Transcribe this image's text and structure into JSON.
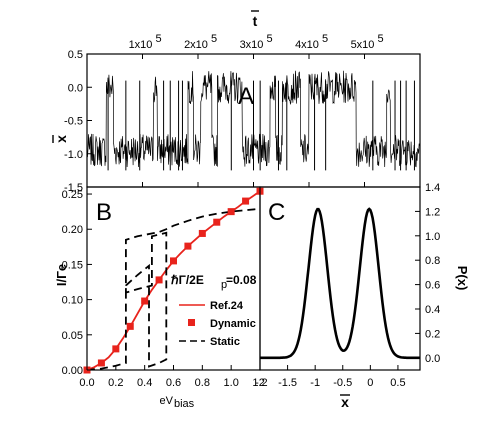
{
  "chart_data": [
    {
      "id": "A",
      "type": "line",
      "panel_label": "A",
      "xlabel": "t",
      "ylabel": "x",
      "xlim": [
        0,
        600000
      ],
      "ylim": [
        -1.5,
        0.5
      ],
      "x_ticks": [
        100000,
        200000,
        300000,
        400000,
        500000
      ],
      "x_tick_labels": [
        "1x10",
        "2x10",
        "3x10",
        "4x10",
        "5x10"
      ],
      "x_tick_exponent": "5",
      "y_ticks": [
        0.5,
        0.0,
        -0.5,
        -1.0,
        -1.5
      ],
      "y_tick_labels": [
        "0.5",
        "0.0",
        "-0.5",
        "-1.0",
        "-1.5"
      ],
      "state_levels": [
        -0.95,
        0.0
      ],
      "noise_amplitude": 0.25,
      "segments": [
        {
          "x0": 0,
          "x1": 35000,
          "state": -0.95
        },
        {
          "x0": 35000,
          "x1": 48000,
          "state": 0.0
        },
        {
          "x0": 48000,
          "x1": 120000,
          "state": -0.95
        },
        {
          "x0": 120000,
          "x1": 127000,
          "state": 0.0
        },
        {
          "x0": 127000,
          "x1": 182000,
          "state": -0.95
        },
        {
          "x0": 182000,
          "x1": 192000,
          "state": 0.0
        },
        {
          "x0": 192000,
          "x1": 205000,
          "state": -0.95
        },
        {
          "x0": 205000,
          "x1": 225000,
          "state": 0.0
        },
        {
          "x0": 225000,
          "x1": 235000,
          "state": -0.95
        },
        {
          "x0": 235000,
          "x1": 280000,
          "state": 0.0
        },
        {
          "x0": 280000,
          "x1": 330000,
          "state": -0.95
        },
        {
          "x0": 330000,
          "x1": 340000,
          "state": 0.0
        },
        {
          "x0": 340000,
          "x1": 352000,
          "state": -0.95
        },
        {
          "x0": 352000,
          "x1": 385000,
          "state": 0.0
        },
        {
          "x0": 385000,
          "x1": 400000,
          "state": -0.95
        },
        {
          "x0": 400000,
          "x1": 485000,
          "state": 0.0
        },
        {
          "x0": 485000,
          "x1": 540000,
          "state": -0.95
        },
        {
          "x0": 540000,
          "x1": 547000,
          "state": 0.0
        },
        {
          "x0": 547000,
          "x1": 600000,
          "state": -0.95
        }
      ],
      "spikes": [
        38000,
        70000,
        95000,
        138000,
        150000,
        165000,
        172000,
        260000,
        300000,
        312000,
        345000,
        360000,
        410000,
        430000,
        515000,
        555000,
        565000,
        575000,
        590000
      ]
    },
    {
      "id": "B",
      "type": "line",
      "panel_label": "B",
      "xlabel": "eV",
      "xlabel_sub": "bias",
      "ylabel": "I/Γe",
      "xlim": [
        0,
        1.2
      ],
      "ylim": [
        0,
        0.26
      ],
      "x_ticks": [
        0.0,
        0.2,
        0.4,
        0.6,
        0.8,
        1.0,
        1.2
      ],
      "x_tick_labels": [
        "0.0",
        "0.2",
        "0.4",
        "0.6",
        "0.8",
        "1.0",
        "1.2"
      ],
      "y_ticks": [
        0.0,
        0.05,
        0.1,
        0.15,
        0.2,
        0.25
      ],
      "y_tick_labels": [
        "0.00",
        "0.05",
        "0.10",
        "0.15",
        "0.20",
        "0.25"
      ],
      "annotation": "ℏΓ/2E",
      "annotation_sub": "p",
      "annotation_value": "=0.08",
      "legend": [
        "Ref.24",
        "Dynamic",
        "Static"
      ],
      "series": [
        {
          "name": "Ref.24",
          "style": "solid-red",
          "x": [
            0.0,
            0.05,
            0.1,
            0.15,
            0.2,
            0.25,
            0.3,
            0.35,
            0.4,
            0.45,
            0.5,
            0.55,
            0.6,
            0.65,
            0.7,
            0.75,
            0.8,
            0.85,
            0.9,
            0.95,
            1.0,
            1.05,
            1.1,
            1.15,
            1.2
          ],
          "y": [
            0.0,
            0.004,
            0.01,
            0.018,
            0.03,
            0.045,
            0.062,
            0.08,
            0.098,
            0.114,
            0.128,
            0.142,
            0.155,
            0.166,
            0.176,
            0.185,
            0.194,
            0.202,
            0.21,
            0.218,
            0.225,
            0.232,
            0.24,
            0.247,
            0.254
          ]
        },
        {
          "name": "Dynamic",
          "style": "red-square",
          "x": [
            0.0,
            0.1,
            0.2,
            0.3,
            0.4,
            0.5,
            0.6,
            0.7,
            0.8,
            0.9,
            1.0,
            1.1,
            1.2
          ],
          "y": [
            0.0,
            0.01,
            0.03,
            0.062,
            0.098,
            0.128,
            0.155,
            0.176,
            0.194,
            0.21,
            0.225,
            0.24,
            0.254
          ]
        },
        {
          "name": "Static",
          "style": "dashed-black",
          "x": [
            0.0,
            0.05,
            0.1,
            0.15,
            0.2,
            0.25,
            0.27,
            0.27,
            0.35,
            0.43,
            0.43,
            0.5,
            0.55,
            0.55,
            0.45,
            0.45,
            0.35,
            0.27,
            0.27,
            0.35,
            0.5,
            0.55,
            0.6,
            0.7,
            0.8,
            0.9,
            1.0,
            1.1,
            1.2
          ],
          "y": [
            0.0,
            0.001,
            0.002,
            0.004,
            0.006,
            0.009,
            0.01,
            0.12,
            0.135,
            0.148,
            0.005,
            0.01,
            0.015,
            0.195,
            0.19,
            0.12,
            0.115,
            0.11,
            0.185,
            0.19,
            0.196,
            0.2,
            0.205,
            0.212,
            0.218,
            0.222,
            0.225,
            0.227,
            0.229
          ]
        }
      ]
    },
    {
      "id": "C",
      "type": "line",
      "panel_label": "C",
      "xlabel": "x",
      "ylabel": "P(x)",
      "xlim": [
        -2.0,
        0.9
      ],
      "ylim": [
        -0.1,
        1.4
      ],
      "x_ticks": [
        -2.0,
        -1.5,
        -1.0,
        -0.5,
        0.0,
        0.5
      ],
      "x_tick_labels": [
        "-2",
        "-1.5",
        "-1",
        "-0.5",
        "0",
        "0.5"
      ],
      "y_ticks": [
        0.0,
        0.2,
        0.4,
        0.6,
        0.8,
        1.0,
        1.2,
        1.4
      ],
      "y_tick_labels": [
        "0.0",
        "0.2",
        "0.4",
        "0.6",
        "0.8",
        "1.0",
        "1.2",
        "1.4"
      ],
      "peaks": [
        {
          "center": -0.95,
          "height": 1.22,
          "width": 0.17
        },
        {
          "center": -0.02,
          "height": 1.22,
          "width": 0.17
        }
      ],
      "sample_range": [
        -2.0,
        0.9
      ],
      "sample_step": 0.02
    }
  ],
  "colors": {
    "red": "#e8231c",
    "black": "#000000"
  }
}
